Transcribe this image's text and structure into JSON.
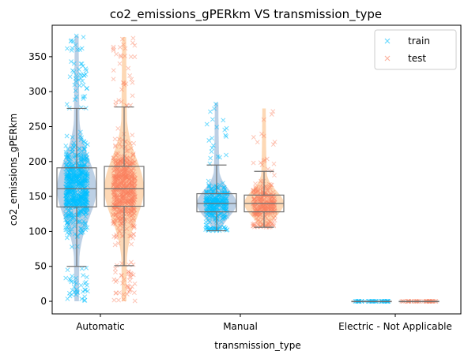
{
  "chart_data": {
    "type": "box",
    "title": "co2_emissions_gPERkm  VS  transmission_type",
    "xlabel": "transmission_type",
    "ylabel": "co2_emissions_gPERkm",
    "categories": [
      "Automatic",
      "Manual",
      "Electric - Not Applicable"
    ],
    "ylim": [
      -18,
      395
    ],
    "yticks": [
      0,
      50,
      100,
      150,
      200,
      250,
      300,
      350
    ],
    "legend": {
      "position": "top-right"
    },
    "series": [
      {
        "name": "train",
        "marker": "x",
        "color": "#00bfff",
        "violin_color": "#b0c8e0",
        "boxes": [
          {
            "whislo": 50,
            "q1": 135,
            "med": 161,
            "q3": 191,
            "whishi": 276,
            "y_min": 0,
            "y_max": 380
          },
          {
            "whislo": 101,
            "q1": 128,
            "med": 140,
            "q3": 154,
            "whishi": 195,
            "y_min": 101,
            "y_max": 284
          },
          {
            "whislo": 0,
            "q1": 0,
            "med": 0,
            "q3": 0,
            "whishi": 0,
            "y_min": 0,
            "y_max": 0
          }
        ]
      },
      {
        "name": "test",
        "marker": "x",
        "color": "#fa8060",
        "violin_color": "#fdd1a8",
        "boxes": [
          {
            "whislo": 51,
            "q1": 136,
            "med": 161,
            "q3": 193,
            "whishi": 278,
            "y_min": 0,
            "y_max": 378
          },
          {
            "whislo": 106,
            "q1": 128,
            "med": 140,
            "q3": 152,
            "whishi": 186,
            "y_min": 106,
            "y_max": 276
          },
          {
            "whislo": 0,
            "q1": 0,
            "med": 0,
            "q3": 0,
            "whishi": 0,
            "y_min": 0,
            "y_max": 0
          }
        ]
      }
    ]
  }
}
